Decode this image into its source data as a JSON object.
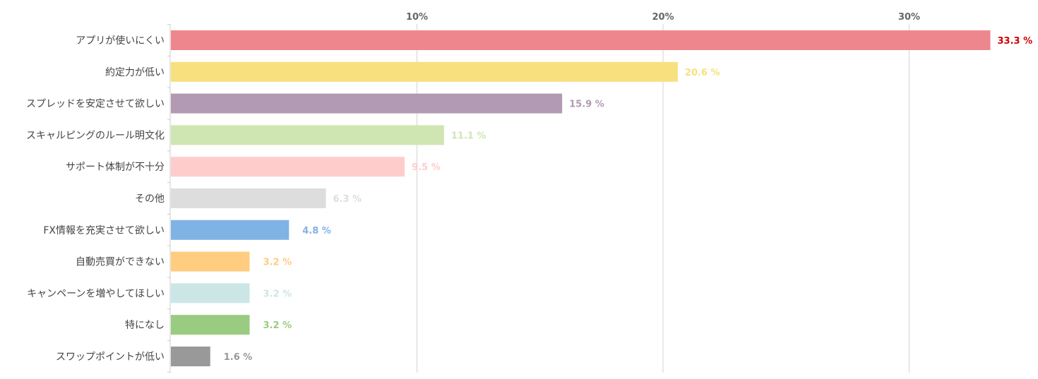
{
  "chart_data": {
    "type": "bar",
    "orientation": "horizontal",
    "categories": [
      "アプリが使いにくい",
      "約定力が低い",
      "スプレッドを安定させて欲しい",
      "スキャルピングのルール明文化",
      "サポート体制が不十分",
      "その他",
      "FX情報を充実させて欲しい",
      "自動売買ができない",
      "キャンペーンを増やしてほしい",
      "特になし",
      "スワップポイントが低い"
    ],
    "values": [
      33.3,
      20.6,
      15.9,
      11.1,
      9.5,
      6.3,
      4.8,
      3.2,
      3.2,
      3.2,
      1.6
    ],
    "value_labels": [
      "33.3 %",
      "20.6 %",
      "15.9 %",
      "11.1 %",
      "9.5 %",
      "6.3 %",
      "4.8 %",
      "3.2 %",
      "3.2 %",
      "3.2 %",
      "1.6 %"
    ],
    "bar_colors": [
      "#ee878d",
      "#f8e07f",
      "#b29ab4",
      "#cfe6b3",
      "#ffcccc",
      "#dddddd",
      "#80b3e5",
      "#ffcc80",
      "#cce6e6",
      "#99cc80",
      "#999999"
    ],
    "label_colors": [
      "#cc0000",
      "#f8e07f",
      "#b29ab4",
      "#cfe6b3",
      "#ffcccc",
      "#dddddd",
      "#80b3e5",
      "#ffcc80",
      "#cce6e6",
      "#99cc80",
      "#999999"
    ],
    "xticks": [
      10,
      20,
      30
    ],
    "xtick_labels": [
      "10%",
      "20%",
      "30%"
    ],
    "xlim": [
      0,
      33.3
    ],
    "grid": true,
    "title": "",
    "xlabel": "",
    "ylabel": ""
  }
}
